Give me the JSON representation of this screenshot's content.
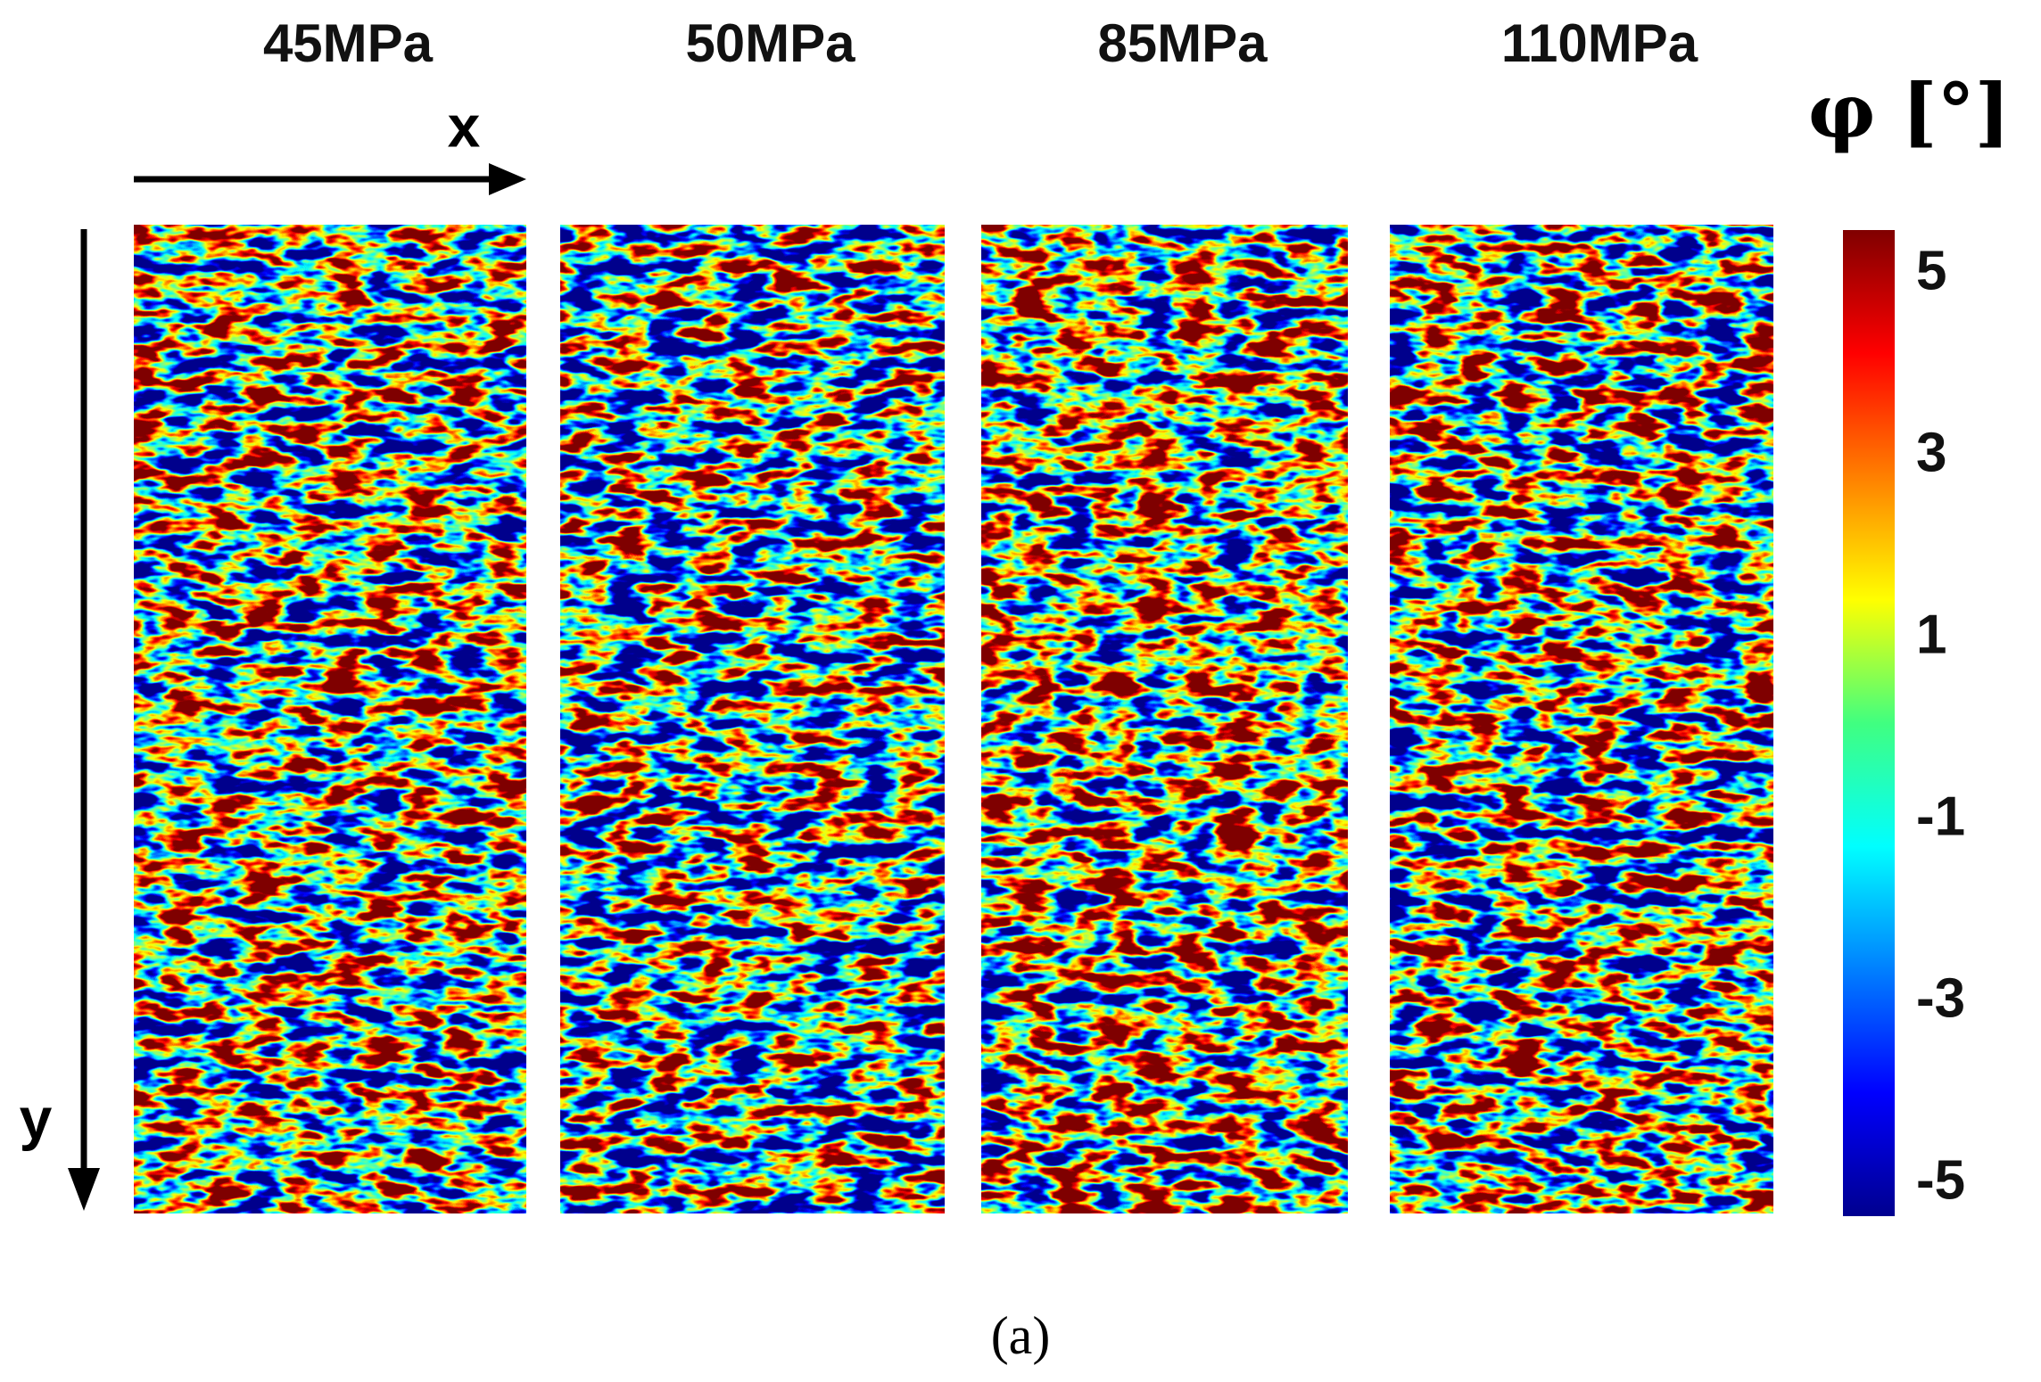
{
  "panels": [
    {
      "title": "45MPa"
    },
    {
      "title": "50MPa"
    },
    {
      "title": "85MPa"
    },
    {
      "title": "110MPa"
    }
  ],
  "axes": {
    "x": "x",
    "y": "y"
  },
  "colorbar": {
    "label": "φ [°]",
    "ticks": [
      "5",
      "3",
      "1",
      "-1",
      "-3",
      "-5"
    ]
  },
  "caption": "(a)"
}
